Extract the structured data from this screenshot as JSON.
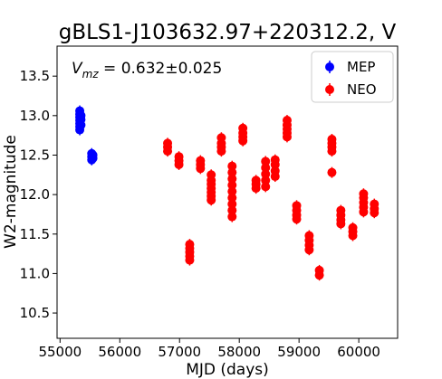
{
  "chart_data": {
    "type": "scatter",
    "title": "gBLS1-J103632.97+220312.2, V",
    "annotation": {
      "prefix": "V",
      "subscript": "mz",
      "value": " = 0.632±0.025"
    },
    "xlabel": "MJD (days)",
    "ylabel": "W2-magnitude",
    "xlim": [
      54950,
      60650
    ],
    "ylim": [
      13.88,
      10.18
    ],
    "y_inverted": true,
    "xticks": [
      55000,
      56000,
      57000,
      58000,
      59000,
      60000
    ],
    "yticks": [
      10.5,
      11.0,
      11.5,
      12.0,
      12.5,
      13.0,
      13.5
    ],
    "xtick_labels": [
      "55000",
      "56000",
      "57000",
      "58000",
      "59000",
      "60000"
    ],
    "ytick_labels": [
      "10.5",
      "11.0",
      "11.5",
      "12.0",
      "12.5",
      "13.0",
      "13.5"
    ],
    "grid": false,
    "legend_position": "top-right",
    "series": [
      {
        "name": "MEP",
        "color": "#0000ff",
        "points": [
          [
            55330,
            12.82
          ],
          [
            55330,
            12.86
          ],
          [
            55330,
            12.9
          ],
          [
            55330,
            12.94
          ],
          [
            55330,
            12.98
          ],
          [
            55330,
            13.02
          ],
          [
            55330,
            13.06
          ],
          [
            55350,
            12.88
          ],
          [
            55350,
            12.95
          ],
          [
            55350,
            13.0
          ],
          [
            55530,
            12.44
          ],
          [
            55530,
            12.48
          ],
          [
            55530,
            12.52
          ],
          [
            55550,
            12.46
          ],
          [
            55550,
            12.5
          ]
        ]
      },
      {
        "name": "NEO",
        "color": "#ff0000",
        "points": [
          [
            56800,
            12.55
          ],
          [
            56800,
            12.6
          ],
          [
            56800,
            12.65
          ],
          [
            56990,
            12.38
          ],
          [
            56990,
            12.43
          ],
          [
            56990,
            12.48
          ],
          [
            57170,
            11.17
          ],
          [
            57170,
            11.22
          ],
          [
            57170,
            11.27
          ],
          [
            57170,
            11.32
          ],
          [
            57170,
            11.37
          ],
          [
            57350,
            12.33
          ],
          [
            57350,
            12.38
          ],
          [
            57350,
            12.43
          ],
          [
            57530,
            11.93
          ],
          [
            57530,
            11.98
          ],
          [
            57530,
            12.03
          ],
          [
            57530,
            12.08
          ],
          [
            57530,
            12.13
          ],
          [
            57530,
            12.18
          ],
          [
            57530,
            12.25
          ],
          [
            57700,
            12.55
          ],
          [
            57700,
            12.6
          ],
          [
            57700,
            12.65
          ],
          [
            57700,
            12.72
          ],
          [
            57880,
            11.72
          ],
          [
            57880,
            11.8
          ],
          [
            57880,
            11.88
          ],
          [
            57880,
            11.96
          ],
          [
            57880,
            12.04
          ],
          [
            57880,
            12.12
          ],
          [
            57880,
            12.2
          ],
          [
            57880,
            12.28
          ],
          [
            57880,
            12.36
          ],
          [
            58060,
            12.68
          ],
          [
            58060,
            12.73
          ],
          [
            58060,
            12.78
          ],
          [
            58060,
            12.84
          ],
          [
            58280,
            12.08
          ],
          [
            58280,
            12.13
          ],
          [
            58280,
            12.18
          ],
          [
            58440,
            12.1
          ],
          [
            58440,
            12.18
          ],
          [
            58440,
            12.26
          ],
          [
            58440,
            12.34
          ],
          [
            58440,
            12.42
          ],
          [
            58600,
            12.23
          ],
          [
            58600,
            12.3
          ],
          [
            58600,
            12.38
          ],
          [
            58600,
            12.44
          ],
          [
            58800,
            12.73
          ],
          [
            58800,
            12.78
          ],
          [
            58800,
            12.83
          ],
          [
            58800,
            12.88
          ],
          [
            58800,
            12.94
          ],
          [
            58960,
            11.69
          ],
          [
            58960,
            11.74
          ],
          [
            58960,
            11.8
          ],
          [
            58960,
            11.86
          ],
          [
            59170,
            11.3
          ],
          [
            59170,
            11.36
          ],
          [
            59170,
            11.42
          ],
          [
            59170,
            11.48
          ],
          [
            59340,
            10.98
          ],
          [
            59340,
            11.04
          ],
          [
            59550,
            12.28
          ],
          [
            59550,
            12.55
          ],
          [
            59550,
            12.6
          ],
          [
            59550,
            12.65
          ],
          [
            59550,
            12.7
          ],
          [
            59700,
            11.63
          ],
          [
            59700,
            11.68
          ],
          [
            59700,
            11.74
          ],
          [
            59700,
            11.8
          ],
          [
            59900,
            11.48
          ],
          [
            59900,
            11.53
          ],
          [
            59900,
            11.58
          ],
          [
            60080,
            11.78
          ],
          [
            60080,
            11.84
          ],
          [
            60080,
            11.9
          ],
          [
            60080,
            11.96
          ],
          [
            60080,
            12.01
          ],
          [
            60260,
            11.77
          ],
          [
            60260,
            11.82
          ],
          [
            60260,
            11.88
          ]
        ]
      }
    ]
  }
}
